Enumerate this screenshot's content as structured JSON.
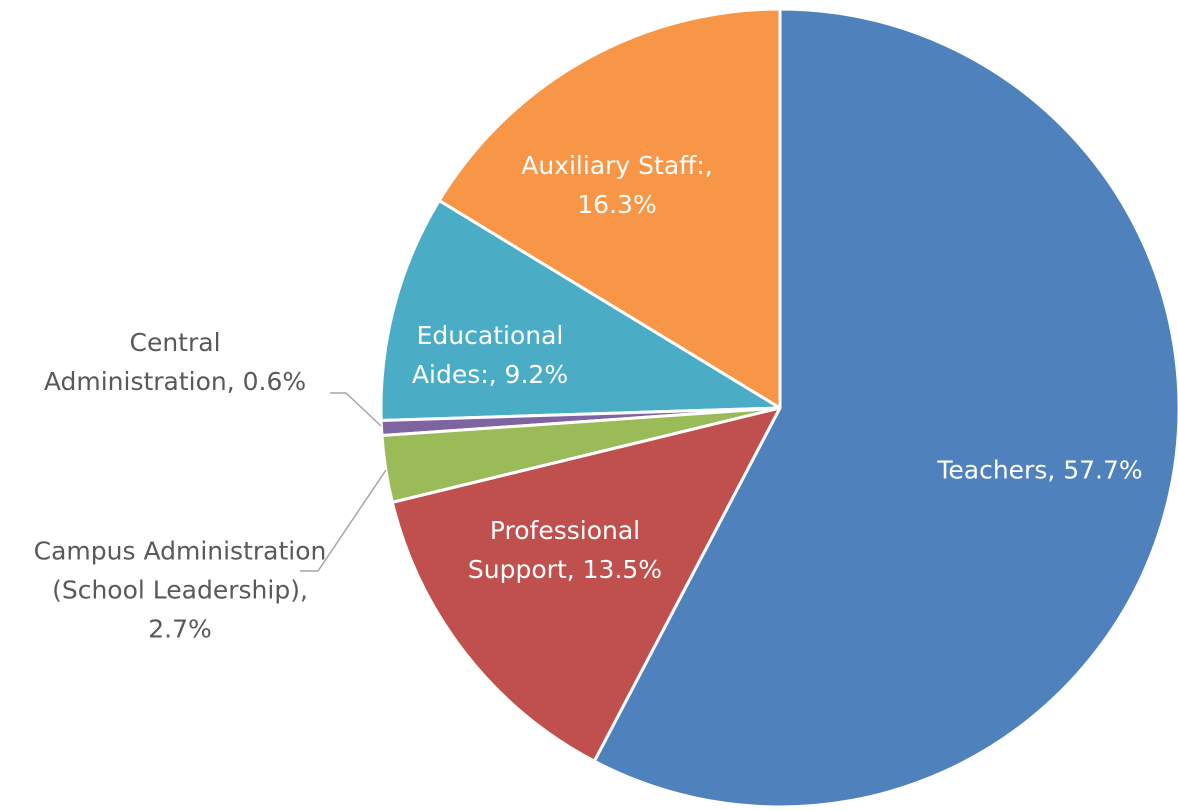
{
  "chart_data": {
    "type": "pie",
    "categories": [
      "Teachers",
      "Professional Support",
      "Campus Administration (School Leadership)",
      "Central Administration",
      "Educational Aides:",
      "Auxiliary Staff:"
    ],
    "values": [
      57.7,
      13.5,
      2.7,
      0.6,
      9.2,
      16.3
    ],
    "value_labels": [
      "Teachers, 57.7%",
      "Professional Support, 13.5%",
      "Campus Administration (School Leadership), 2.7%",
      "Central Administration, 0.6%",
      "Educational Aides:, 9.2%",
      "Auxiliary Staff:, 16.3%"
    ],
    "colors": [
      "#4f81bd",
      "#c0504d",
      "#9bbb59",
      "#8064a2",
      "#4bacc6",
      "#f79646"
    ]
  }
}
